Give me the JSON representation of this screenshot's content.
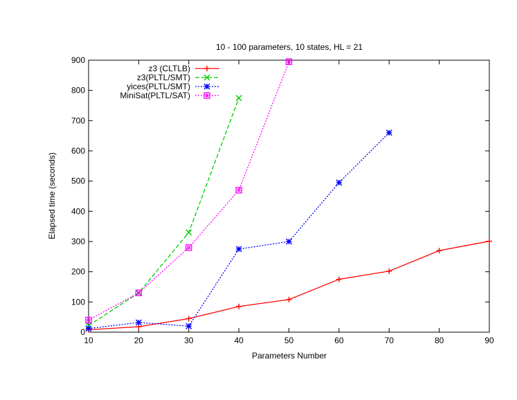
{
  "chart_data": {
    "type": "line",
    "title": "10 - 100 parameters, 10 states, HL = 21",
    "xlabel": "Parameters Number",
    "ylabel": "Elapsed time (seconds)",
    "xlim": [
      10,
      90
    ],
    "ylim": [
      0,
      900
    ],
    "x_ticks": [
      10,
      20,
      30,
      40,
      50,
      60,
      70,
      80,
      90
    ],
    "y_ticks": [
      0,
      100,
      200,
      300,
      400,
      500,
      600,
      700,
      800,
      900
    ],
    "grid": false,
    "legend_position": "top-left",
    "series": [
      {
        "name": "z3 (CLTLB)",
        "color": "#ff0000",
        "dash": "solid",
        "marker": "plus",
        "x": [
          10,
          20,
          30,
          40,
          50,
          60,
          70,
          80,
          90
        ],
        "y": [
          8,
          18,
          45,
          85,
          108,
          175,
          202,
          270,
          301
        ]
      },
      {
        "name": "z3(PLTL/SMT)",
        "color": "#00cc00",
        "dash": "dashed",
        "marker": "cross",
        "x": [
          10,
          20,
          30,
          40
        ],
        "y": [
          22,
          130,
          330,
          775
        ]
      },
      {
        "name": "yices(PLTL/SMT)",
        "color": "#0000ff",
        "dash": "dotted",
        "marker": "star",
        "x": [
          10,
          20,
          30,
          40,
          50,
          60,
          70
        ],
        "y": [
          12,
          32,
          20,
          275,
          300,
          495,
          660
        ]
      },
      {
        "name": "MiniSat(PLTL/SAT)",
        "color": "#ff00ff",
        "dash": "dotted",
        "marker": "square",
        "x": [
          10,
          20,
          30,
          40,
          50
        ],
        "y": [
          40,
          130,
          280,
          470,
          895
        ]
      }
    ]
  }
}
